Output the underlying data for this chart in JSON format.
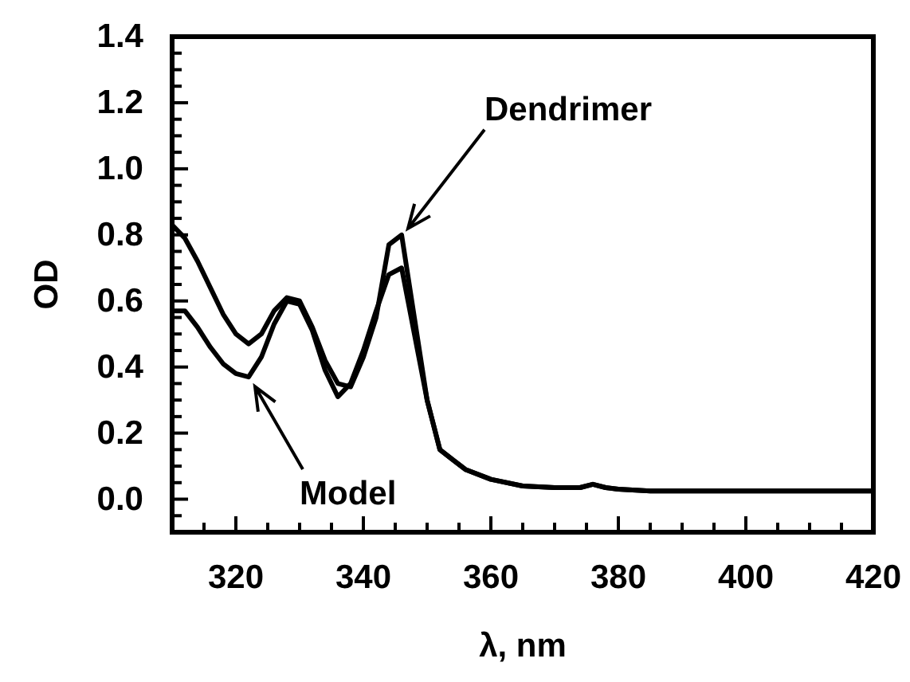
{
  "chart_data": {
    "type": "line",
    "xlabel": "λ, nm",
    "ylabel": "OD",
    "xlim": [
      310,
      420
    ],
    "ylim": [
      -0.1,
      1.4
    ],
    "xticks": [
      {
        "value": 310,
        "label": null
      },
      {
        "value": 315,
        "label": null
      },
      320,
      {
        "value": 325,
        "label": null
      },
      {
        "value": 330,
        "label": null
      },
      {
        "value": 335,
        "label": null
      },
      340,
      {
        "value": 345,
        "label": null
      },
      {
        "value": 350,
        "label": null
      },
      {
        "value": 355,
        "label": null
      },
      360,
      {
        "value": 365,
        "label": null
      },
      {
        "value": 370,
        "label": null
      },
      {
        "value": 375,
        "label": null
      },
      380,
      {
        "value": 385,
        "label": null
      },
      {
        "value": 390,
        "label": null
      },
      {
        "value": 395,
        "label": null
      },
      400,
      {
        "value": 405,
        "label": null
      },
      {
        "value": 410,
        "label": null
      },
      {
        "value": 415,
        "label": null
      },
      420
    ],
    "yticks": [
      {
        "value": -0.1,
        "label": null
      },
      {
        "value": -0.05,
        "label": null
      },
      {
        "value": 0,
        "label": "0.0"
      },
      {
        "value": 0.05,
        "label": null
      },
      {
        "value": 0.1,
        "label": null
      },
      {
        "value": 0.15,
        "label": null
      },
      0.2,
      {
        "value": 0.25,
        "label": null
      },
      {
        "value": 0.3,
        "label": null
      },
      {
        "value": 0.35,
        "label": null
      },
      0.4,
      {
        "value": 0.45,
        "label": null
      },
      {
        "value": 0.5,
        "label": null
      },
      {
        "value": 0.55,
        "label": null
      },
      0.6,
      {
        "value": 0.65,
        "label": null
      },
      {
        "value": 0.7,
        "label": null
      },
      {
        "value": 0.75,
        "label": null
      },
      0.8,
      {
        "value": 0.85,
        "label": null
      },
      {
        "value": 0.9,
        "label": null
      },
      {
        "value": 0.95,
        "label": null
      },
      {
        "value": 1,
        "label": "1.0"
      },
      {
        "value": 1.05,
        "label": null
      },
      {
        "value": 1.1,
        "label": null
      },
      {
        "value": 1.15,
        "label": null
      },
      1.2,
      {
        "value": 1.25,
        "label": null
      },
      {
        "value": 1.3,
        "label": null
      },
      {
        "value": 1.35,
        "label": null
      },
      1.4
    ],
    "x": [
      310,
      312,
      314,
      316,
      318,
      320,
      322,
      324,
      326,
      328,
      330,
      332,
      334,
      336,
      338,
      340,
      342,
      344,
      346,
      348,
      350,
      352,
      354,
      356,
      360,
      365,
      370,
      374,
      376,
      378,
      380,
      385,
      390,
      400,
      410,
      420
    ],
    "series": [
      {
        "color": "#000000",
        "values": [
          0.83,
          0.79,
          0.72,
          0.64,
          0.56,
          0.5,
          0.47,
          0.5,
          0.57,
          0.61,
          0.6,
          0.52,
          0.42,
          0.35,
          0.34,
          0.43,
          0.55,
          0.77,
          0.8,
          0.55,
          0.3,
          0.15,
          0.12,
          0.09,
          0.06,
          0.04,
          0.035,
          0.035,
          0.045,
          0.035,
          0.03,
          0.025,
          0.025,
          0.025,
          0.025,
          0.025
        ]
      },
      {
        "color": "#000000",
        "values": [
          0.57,
          0.57,
          0.52,
          0.46,
          0.41,
          0.38,
          0.37,
          0.43,
          0.53,
          0.6,
          0.59,
          0.51,
          0.39,
          0.31,
          0.35,
          0.45,
          0.57,
          0.68,
          0.7,
          0.5,
          0.3,
          0.15,
          0.12,
          0.09,
          0.06,
          0.04,
          0.035,
          0.035,
          0.045,
          0.035,
          0.03,
          0.025,
          0.025,
          0.025,
          0.025,
          0.025
        ]
      }
    ],
    "annotations": [
      {
        "text": "Dendrimer",
        "x": 346,
        "y": 0.8
      },
      {
        "text": "Model",
        "x": 322,
        "y": 0.37
      }
    ],
    "grid": false,
    "marker": "none",
    "line_style": "solid"
  }
}
